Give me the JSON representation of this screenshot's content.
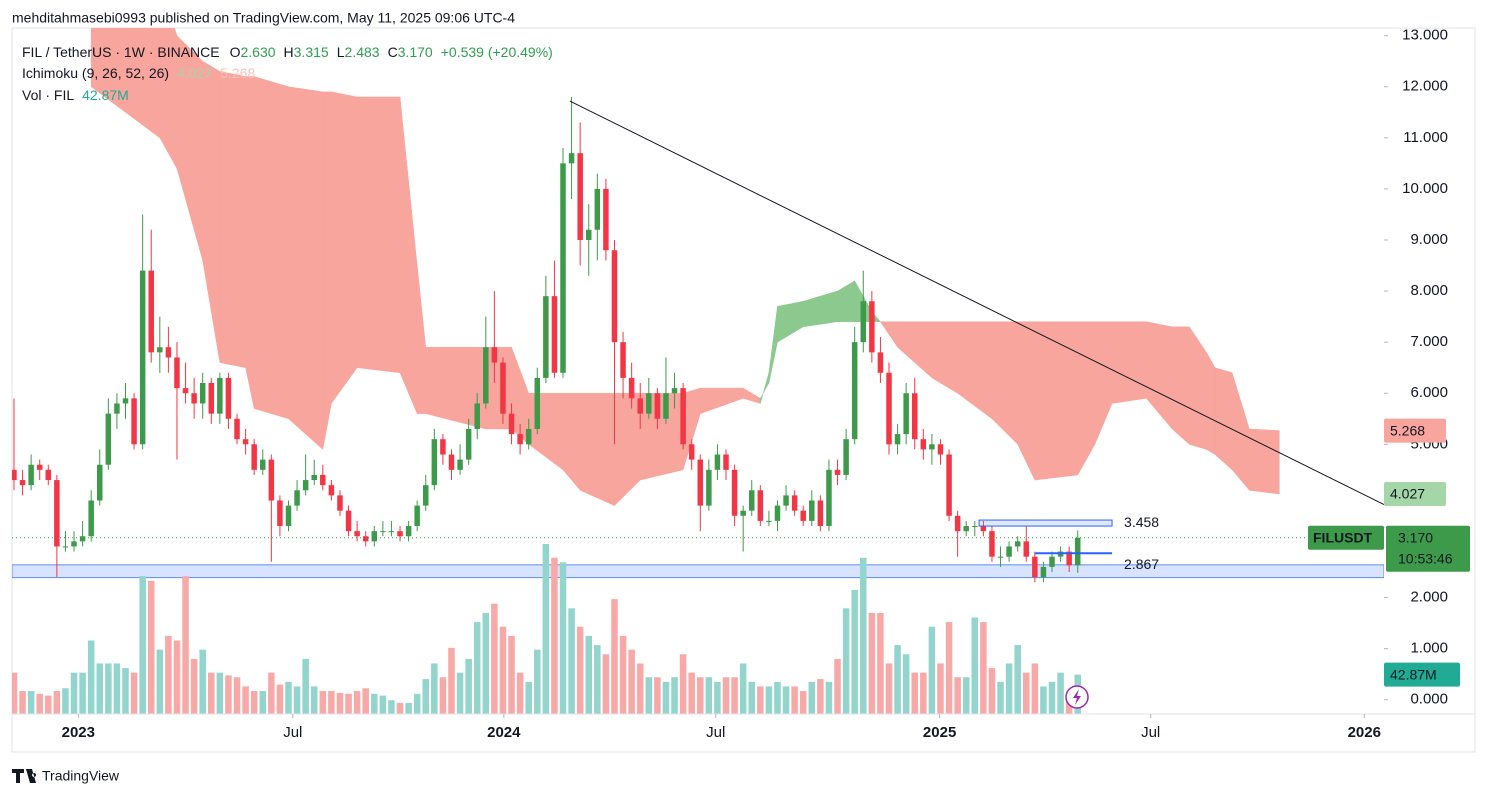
{
  "header": "mehditahmasebi0993 published on TradingView.com, May 11, 2025 09:06 UTC-4",
  "footer": "TradingView",
  "chart_data": {
    "type": "candlestick",
    "legend": {
      "symbol": "FIL / TetherUS · 1W · BINANCE",
      "o_label": "O",
      "o": "2.630",
      "h_label": "H",
      "h": "3.315",
      "l_label": "L",
      "l": "2.483",
      "c_label": "C",
      "c": "3.170",
      "change": "+0.539 (+20.49%)",
      "ichimoku": "Ichimoku (9, 26, 52, 26)",
      "volume": "Vol · FIL"
    },
    "up_color": "#3d9a4b",
    "down_color": "#f23645",
    "candles": [
      [
        4.5,
        5.9,
        4.1,
        4.3
      ],
      [
        4.3,
        4.5,
        4.0,
        4.2
      ],
      [
        4.2,
        4.8,
        4.1,
        4.6
      ],
      [
        4.6,
        4.7,
        4.3,
        4.5
      ],
      [
        4.5,
        4.6,
        4.2,
        4.3
      ],
      [
        4.3,
        4.4,
        2.4,
        3.0
      ],
      [
        3.0,
        3.3,
        2.9,
        3.0
      ],
      [
        3.0,
        3.3,
        2.9,
        3.1
      ],
      [
        3.1,
        3.5,
        3.0,
        3.2
      ],
      [
        3.2,
        4.1,
        3.1,
        3.9
      ],
      [
        3.9,
        4.9,
        3.8,
        4.6
      ],
      [
        4.6,
        5.9,
        4.5,
        5.6
      ],
      [
        5.6,
        6.0,
        5.3,
        5.8
      ],
      [
        5.8,
        6.2,
        5.5,
        5.9
      ],
      [
        5.9,
        6.0,
        4.9,
        5.0
      ],
      [
        5.0,
        9.5,
        4.9,
        8.4
      ],
      [
        8.4,
        9.2,
        6.6,
        6.8
      ],
      [
        6.8,
        7.5,
        6.4,
        6.9
      ],
      [
        6.9,
        7.3,
        6.4,
        6.7
      ],
      [
        6.7,
        7.0,
        4.7,
        6.1
      ],
      [
        6.1,
        6.6,
        5.8,
        6.0
      ],
      [
        6.0,
        6.3,
        5.5,
        5.8
      ],
      [
        5.8,
        6.4,
        5.5,
        6.2
      ],
      [
        6.2,
        6.3,
        5.4,
        5.6
      ],
      [
        5.6,
        6.4,
        5.4,
        6.3
      ],
      [
        6.3,
        6.4,
        5.3,
        5.5
      ],
      [
        5.5,
        5.6,
        5.0,
        5.1
      ],
      [
        5.1,
        5.3,
        4.8,
        5.0
      ],
      [
        5.0,
        5.1,
        4.4,
        4.5
      ],
      [
        4.5,
        4.9,
        4.4,
        4.7
      ],
      [
        4.7,
        4.8,
        2.7,
        3.9
      ],
      [
        3.9,
        4.0,
        3.2,
        3.4
      ],
      [
        3.4,
        3.9,
        3.3,
        3.8
      ],
      [
        3.8,
        4.3,
        3.7,
        4.1
      ],
      [
        4.1,
        4.8,
        4.0,
        4.3
      ],
      [
        4.3,
        4.7,
        4.2,
        4.4
      ],
      [
        4.4,
        4.6,
        4.1,
        4.2
      ],
      [
        4.2,
        4.3,
        3.9,
        4.0
      ],
      [
        4.0,
        4.1,
        3.6,
        3.7
      ],
      [
        3.7,
        3.8,
        3.2,
        3.3
      ],
      [
        3.3,
        3.5,
        3.1,
        3.2
      ],
      [
        3.2,
        3.3,
        3.0,
        3.1
      ],
      [
        3.1,
        3.4,
        3.0,
        3.3
      ],
      [
        3.3,
        3.5,
        3.2,
        3.3
      ],
      [
        3.3,
        3.5,
        3.2,
        3.3
      ],
      [
        3.3,
        3.4,
        3.1,
        3.2
      ],
      [
        3.2,
        3.5,
        3.1,
        3.4
      ],
      [
        3.4,
        3.9,
        3.3,
        3.8
      ],
      [
        3.8,
        4.4,
        3.7,
        4.2
      ],
      [
        4.2,
        5.3,
        4.1,
        5.1
      ],
      [
        5.1,
        5.2,
        4.6,
        4.8
      ],
      [
        4.8,
        4.9,
        4.3,
        4.5
      ],
      [
        4.5,
        5.0,
        4.4,
        4.7
      ],
      [
        4.7,
        5.5,
        4.6,
        5.3
      ],
      [
        5.3,
        6.0,
        5.1,
        5.8
      ],
      [
        5.8,
        7.5,
        5.7,
        6.9
      ],
      [
        6.9,
        8.0,
        6.2,
        6.6
      ],
      [
        6.6,
        6.7,
        5.4,
        5.6
      ],
      [
        5.6,
        5.8,
        5.0,
        5.2
      ],
      [
        5.2,
        5.4,
        4.8,
        5.0
      ],
      [
        5.0,
        5.5,
        4.9,
        5.3
      ],
      [
        5.3,
        6.5,
        5.2,
        6.3
      ],
      [
        6.3,
        8.3,
        6.2,
        7.9
      ],
      [
        7.9,
        8.6,
        6.3,
        6.4
      ],
      [
        6.4,
        10.8,
        6.3,
        10.5
      ],
      [
        10.5,
        11.8,
        9.8,
        10.7
      ],
      [
        10.7,
        11.3,
        8.5,
        9.0
      ],
      [
        9.0,
        9.7,
        8.3,
        9.2
      ],
      [
        9.2,
        10.3,
        8.6,
        10.0
      ],
      [
        10.0,
        10.2,
        8.6,
        8.8
      ],
      [
        8.8,
        9.0,
        5.0,
        7.0
      ],
      [
        7.0,
        7.2,
        5.9,
        6.3
      ],
      [
        6.3,
        6.6,
        5.7,
        5.9
      ],
      [
        5.9,
        6.2,
        5.3,
        5.6
      ],
      [
        5.6,
        6.3,
        5.5,
        6.0
      ],
      [
        6.0,
        6.1,
        5.3,
        5.5
      ],
      [
        5.5,
        6.7,
        5.4,
        6.0
      ],
      [
        6.0,
        6.4,
        5.7,
        6.1
      ],
      [
        6.1,
        6.2,
        4.9,
        5.0
      ],
      [
        5.0,
        5.1,
        4.5,
        4.7
      ],
      [
        4.7,
        4.8,
        3.3,
        3.8
      ],
      [
        3.8,
        4.7,
        3.7,
        4.5
      ],
      [
        4.5,
        5.0,
        4.3,
        4.8
      ],
      [
        4.8,
        4.9,
        4.3,
        4.5
      ],
      [
        4.5,
        4.6,
        3.4,
        3.6
      ],
      [
        3.6,
        3.8,
        2.9,
        3.7
      ],
      [
        3.7,
        4.3,
        3.6,
        4.1
      ],
      [
        4.1,
        4.2,
        3.4,
        3.5
      ],
      [
        3.5,
        3.7,
        3.4,
        3.5
      ],
      [
        3.5,
        3.9,
        3.3,
        3.8
      ],
      [
        3.8,
        4.2,
        3.7,
        4.0
      ],
      [
        4.0,
        4.1,
        3.6,
        3.7
      ],
      [
        3.7,
        3.8,
        3.4,
        3.5
      ],
      [
        3.5,
        4.1,
        3.4,
        3.9
      ],
      [
        3.9,
        4.0,
        3.3,
        3.4
      ],
      [
        3.4,
        4.7,
        3.3,
        4.5
      ],
      [
        4.5,
        4.7,
        4.2,
        4.4
      ],
      [
        4.4,
        5.3,
        4.3,
        5.1
      ],
      [
        5.1,
        7.3,
        5.0,
        7.0
      ],
      [
        7.0,
        8.4,
        6.8,
        7.8
      ],
      [
        7.8,
        8.0,
        6.6,
        6.8
      ],
      [
        6.8,
        7.1,
        6.2,
        6.4
      ],
      [
        6.4,
        6.6,
        4.8,
        5.0
      ],
      [
        5.0,
        5.4,
        4.8,
        5.2
      ],
      [
        5.2,
        6.2,
        5.0,
        6.0
      ],
      [
        6.0,
        6.3,
        4.9,
        5.1
      ],
      [
        5.1,
        5.3,
        4.7,
        4.9
      ],
      [
        4.9,
        5.2,
        4.6,
        5.0
      ],
      [
        5.0,
        5.1,
        4.6,
        4.8
      ],
      [
        4.8,
        4.9,
        3.5,
        3.6
      ],
      [
        3.6,
        3.7,
        2.8,
        3.3
      ],
      [
        3.3,
        3.5,
        3.2,
        3.4
      ],
      [
        3.4,
        3.5,
        3.2,
        3.4
      ],
      [
        3.4,
        3.5,
        3.2,
        3.3
      ],
      [
        3.3,
        3.4,
        2.7,
        2.8
      ],
      [
        2.8,
        3.0,
        2.6,
        2.8
      ],
      [
        2.8,
        3.1,
        2.7,
        3.0
      ],
      [
        3.0,
        3.2,
        2.9,
        3.1
      ],
      [
        3.1,
        3.4,
        2.7,
        2.8
      ],
      [
        2.8,
        2.9,
        2.3,
        2.4
      ],
      [
        2.4,
        2.7,
        2.3,
        2.6
      ],
      [
        2.6,
        2.9,
        2.5,
        2.8
      ],
      [
        2.8,
        3.0,
        2.7,
        2.9
      ],
      [
        2.9,
        3.0,
        2.5,
        2.63
      ],
      [
        2.63,
        3.315,
        2.483,
        3.17
      ]
    ],
    "volume": {
      "up_color": "#93d5cc",
      "down_color": "#f7a9a8",
      "values": [
        45,
        25,
        25,
        22,
        20,
        25,
        28,
        45,
        45,
        80,
        55,
        55,
        55,
        50,
        45,
        150,
        145,
        70,
        85,
        80,
        150,
        60,
        70,
        45,
        45,
        42,
        40,
        30,
        25,
        25,
        45,
        32,
        35,
        30,
        60,
        30,
        25,
        25,
        23,
        22,
        25,
        28,
        22,
        20,
        15,
        12,
        12,
        22,
        38,
        55,
        40,
        72,
        45,
        60,
        100,
        110,
        120,
        95,
        85,
        45,
        35,
        70,
        185,
        170,
        165,
        115,
        95,
        85,
        75,
        65,
        125,
        85,
        70,
        55,
        40,
        40,
        35,
        40,
        65,
        45,
        40,
        40,
        35,
        40,
        40,
        55,
        35,
        30,
        30,
        35,
        30,
        30,
        25,
        35,
        38,
        35,
        60,
        115,
        135,
        170,
        110,
        110,
        55,
        75,
        65,
        45,
        45,
        95,
        55,
        100,
        40,
        40,
        105,
        100,
        50,
        35,
        55,
        75,
        45,
        55,
        30,
        35,
        45,
        20,
        42.87
      ],
      "last_label": "42.87M"
    },
    "ichimoku": {
      "up_color": "#8cc98e",
      "down_color": "#f7a59d",
      "x": [
        9,
        17,
        19,
        22,
        24,
        27,
        28,
        32,
        36,
        37,
        40,
        45,
        47,
        48,
        55,
        58,
        60,
        64,
        66,
        70,
        73,
        78,
        80,
        85,
        87,
        88,
        89,
        92,
        96,
        98,
        100,
        101,
        103,
        107,
        110,
        114,
        117,
        119,
        124,
        126,
        128,
        132,
        135,
        137,
        139,
        140,
        142,
        144,
        147.5
      ],
      "span_a": [
        12.0,
        11.0,
        10.4,
        8.6,
        6.6,
        6.5,
        5.7,
        5.5,
        4.9,
        5.8,
        6.5,
        6.4,
        5.6,
        5.6,
        5.3,
        5.3,
        5.0,
        4.5,
        4.1,
        3.8,
        4.3,
        4.5,
        5.6,
        5.9,
        5.8,
        6.4,
        7.7,
        7.8,
        8.0,
        8.2,
        7.6,
        7.4,
        6.9,
        6.3,
        6.0,
        5.5,
        5.0,
        4.3,
        4.4,
        5.0,
        5.8,
        5.9,
        5.3,
        5.0,
        4.9,
        4.8,
        4.5,
        4.1,
        4.027
      ],
      "span_b": [
        14,
        14,
        13.0,
        12.5,
        12.3,
        12.2,
        12.2,
        12.0,
        11.9,
        11.9,
        11.8,
        11.8,
        8.5,
        6.9,
        6.9,
        6.9,
        6.0,
        6.0,
        6.0,
        6.0,
        6.0,
        6.0,
        6.1,
        6.1,
        5.9,
        6.2,
        7.0,
        7.3,
        7.4,
        7.4,
        7.4,
        7.4,
        7.4,
        7.4,
        7.4,
        7.4,
        7.4,
        7.4,
        7.4,
        7.4,
        7.4,
        7.4,
        7.3,
        7.3,
        6.8,
        6.5,
        6.4,
        5.3,
        5.268
      ]
    },
    "trendline": {
      "x": [
        64.8,
        159.7
      ],
      "y": [
        11.72,
        3.82
      ]
    },
    "zone": [
      2.39,
      2.64
    ],
    "levels": [
      {
        "value": 3.458,
        "label": "3.458",
        "x": [
          112.5,
          128
        ]
      },
      {
        "value": 2.867,
        "label": "2.867",
        "x": [
          119,
          128
        ]
      }
    ],
    "last_price": {
      "value": 3.17,
      "label": "3.170",
      "symbol": "FILUSDT",
      "countdown": "10:53:46"
    },
    "xlim": [
      -0.23,
      159.7
    ],
    "ylim": [
      -0.28,
      13.15
    ],
    "yticks": [
      {
        "value": 0,
        "label": "0.000"
      },
      {
        "value": 1,
        "label": "1.000"
      },
      {
        "value": 2,
        "label": "2.000"
      },
      {
        "value": 5,
        "label": "5.000"
      },
      {
        "value": 6,
        "label": "6.000"
      },
      {
        "value": 7,
        "label": "7.000"
      },
      {
        "value": 8,
        "label": "8.000"
      },
      {
        "value": 9,
        "label": "9.000"
      },
      {
        "value": 10,
        "label": "10.000"
      },
      {
        "value": 11,
        "label": "11.000"
      },
      {
        "value": 12,
        "label": "12.000"
      },
      {
        "value": 13,
        "label": "13.000"
      }
    ],
    "xticks": [
      {
        "value": 7.5,
        "label": "2023"
      },
      {
        "value": 32.5,
        "label": "Jul"
      },
      {
        "value": 57.1,
        "label": "2024"
      },
      {
        "value": 81.8,
        "label": "Jul"
      },
      {
        "value": 107.9,
        "label": "2025"
      },
      {
        "value": 132.5,
        "label": "Jul"
      },
      {
        "value": 157.4,
        "label": "2026"
      }
    ]
  }
}
